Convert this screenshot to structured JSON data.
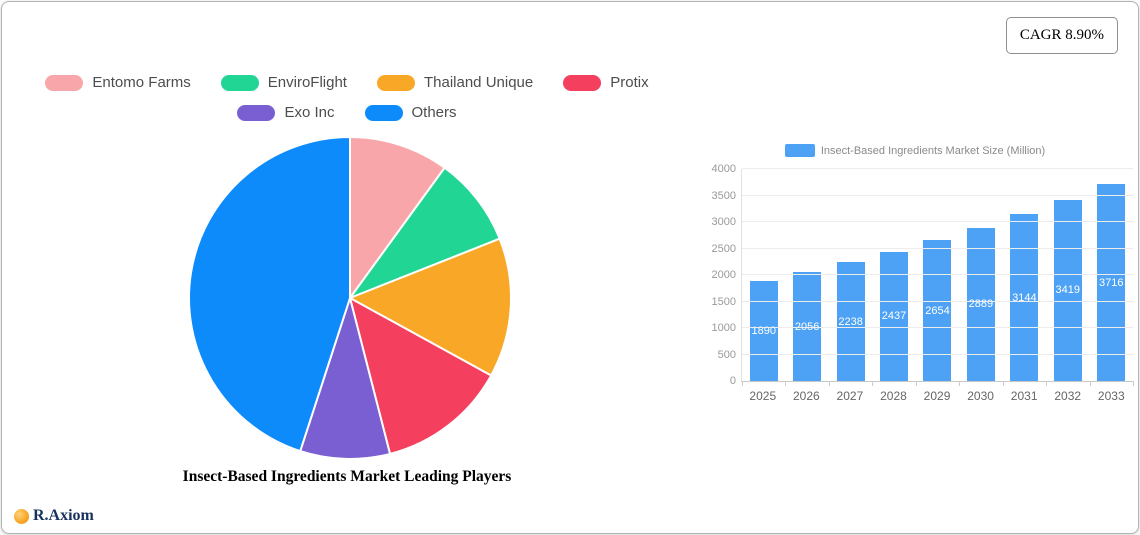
{
  "card": {
    "cagr_badge": "CAGR 8.90%",
    "brand": "R.Axiom"
  },
  "chart_data": [
    {
      "type": "pie",
      "title": "Insect-Based Ingredients Market Leading Players",
      "labels": [
        "Entomo Farms",
        "EnviroFlight",
        "Thailand Unique",
        "Protix",
        "Exo Inc",
        "Others"
      ],
      "values": [
        10,
        9,
        14,
        13,
        9,
        45
      ],
      "colors": [
        "#f9a6aa",
        "#21d595",
        "#f8a826",
        "#f43f5e",
        "#7a5fd3",
        "#0d8bfb"
      ],
      "legend_position": "top",
      "legend_rows": [
        4,
        2
      ]
    },
    {
      "type": "bar",
      "legend": "Insect-Based Ingredients Market Size (Million)",
      "categories": [
        "2025",
        "2026",
        "2027",
        "2028",
        "2029",
        "2030",
        "2031",
        "2032",
        "2033"
      ],
      "values": [
        1890,
        2056,
        2238,
        2437,
        2654,
        2889,
        3144,
        3419,
        3716
      ],
      "bar_color": "#4da2f6",
      "ylim": [
        0,
        4000
      ],
      "yticks": [
        0,
        500,
        1000,
        1500,
        2000,
        2500,
        3000,
        3500,
        4000
      ],
      "grid": true,
      "legend_position": "top"
    }
  ]
}
